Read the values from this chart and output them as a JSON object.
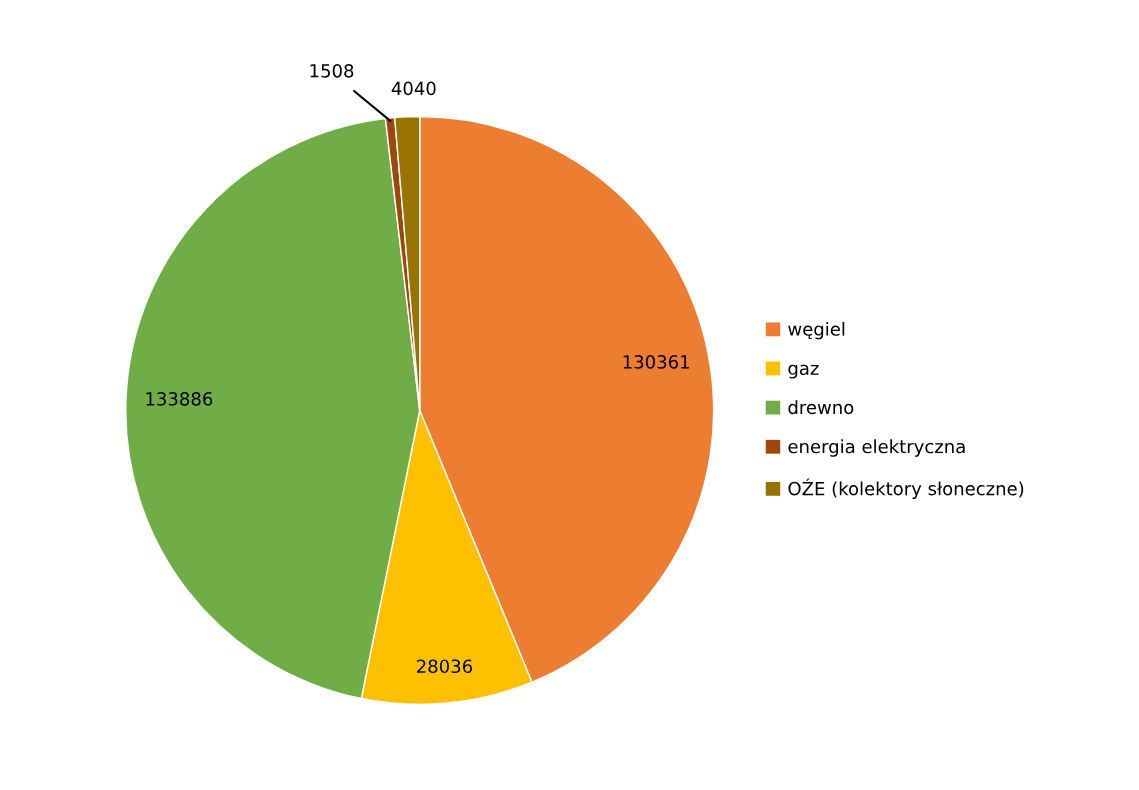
{
  "chart_data": {
    "type": "pie",
    "categories": [
      "węgiel",
      "gaz",
      "drewno",
      "energia elektryczna",
      "OŹE (kolektory słoneczne)"
    ],
    "values": [
      130361,
      28036,
      133886,
      1508,
      4040
    ],
    "colors": [
      "#ed7d31",
      "#ffc000",
      "#70ad47",
      "#9e480e",
      "#997300"
    ],
    "data_labels": true,
    "legend": "right"
  }
}
